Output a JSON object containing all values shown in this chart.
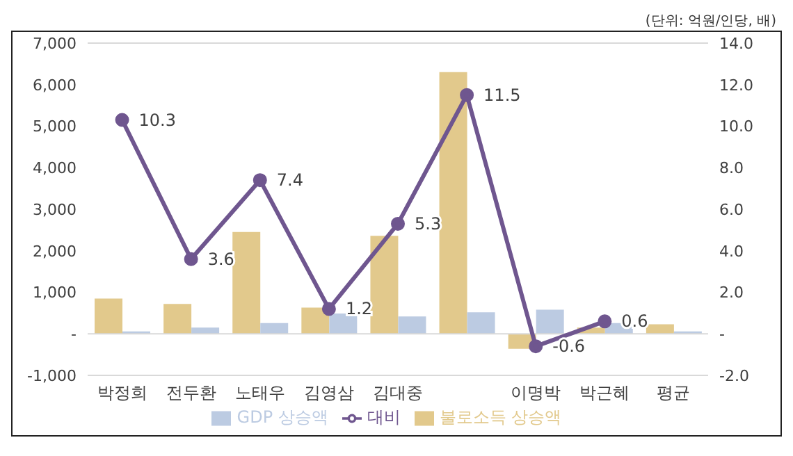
{
  "chart_data": {
    "type": "bar",
    "annotations": [
      "(단위: 억원/인당, 배)"
    ],
    "categories": [
      "박정희",
      "전두환",
      "노태우",
      "김영삼",
      "김대중",
      null,
      "이명박",
      "박근혜",
      "평균"
    ],
    "series": [
      {
        "name": "불로소득 상승액",
        "color": "#e2c98c",
        "values": [
          850,
          720,
          2450,
          630,
          2360,
          6300,
          -360,
          150,
          230
        ]
      },
      {
        "name": "GDP 상승액",
        "color": "#bccbe2",
        "values": [
          60,
          150,
          260,
          490,
          420,
          520,
          580,
          260,
          60
        ]
      },
      {
        "name": "대비",
        "type": "line",
        "axis": "y2",
        "color": "#6f568f",
        "values": [
          10.3,
          3.6,
          7.4,
          1.2,
          5.3,
          11.5,
          -0.6,
          0.6,
          null
        ],
        "value_labels": [
          "10.3",
          "3.6",
          "7.4",
          "1.2",
          "5.3",
          "11.5",
          "-0.6",
          "0.6",
          null
        ]
      }
    ],
    "ylim": [
      -1000,
      7000
    ],
    "yticks": [
      {
        "value": -1000,
        "label": "-1,000"
      },
      {
        "value": 0,
        "label": "-"
      },
      {
        "value": 1000,
        "label": "1,000"
      },
      {
        "value": 2000,
        "label": "2,000"
      },
      {
        "value": 3000,
        "label": "3,000"
      },
      {
        "value": 4000,
        "label": "4,000"
      },
      {
        "value": 5000,
        "label": "5,000"
      },
      {
        "value": 6000,
        "label": "6,000"
      },
      {
        "value": 7000,
        "label": "7,000"
      }
    ],
    "y2lim": [
      -2,
      14
    ],
    "y2ticks": [
      {
        "value": -2,
        "label": "-2.0"
      },
      {
        "value": 0,
        "label": "-"
      },
      {
        "value": 2,
        "label": "2.0"
      },
      {
        "value": 4,
        "label": "4.0"
      },
      {
        "value": 6,
        "label": "6.0"
      },
      {
        "value": 8,
        "label": "8.0"
      },
      {
        "value": 10,
        "label": "10.0"
      },
      {
        "value": 12,
        "label": "12.0"
      },
      {
        "value": 14,
        "label": "14.0"
      }
    ],
    "grid": "y",
    "legend": "bottom",
    "marker": "circle",
    "line_style": "solid"
  }
}
